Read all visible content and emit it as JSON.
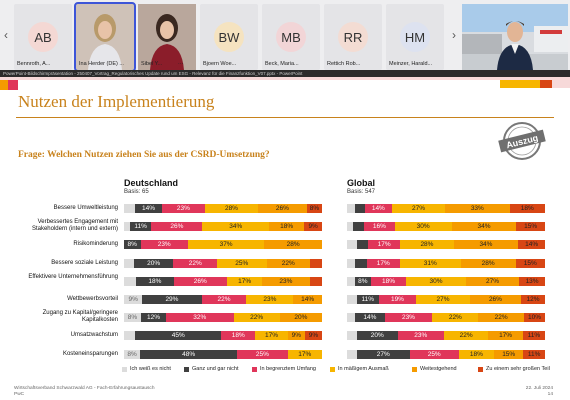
{
  "participants": [
    {
      "initials": "AB",
      "name": "Bennroth, A...",
      "color": "#f4d8d4"
    },
    {
      "initials": "",
      "name": "Ina Herder (DE) ...",
      "video": true,
      "active": true
    },
    {
      "initials": "",
      "name": "Sibel Y...",
      "video": true
    },
    {
      "initials": "BW",
      "name": "Bjoern Woe...",
      "color": "#f5e3c0"
    },
    {
      "initials": "MB",
      "name": "Beck, Maria...",
      "color": "#f2d5d7"
    },
    {
      "initials": "RR",
      "name": "Rettich Rob...",
      "color": "#f3dcd3"
    },
    {
      "initials": "HM",
      "name": "Meinzer, Harald...",
      "color": "#dde2f0"
    }
  ],
  "more_label": "⋯",
  "window_title": "PowerPoint-Bildschirmpräsentation - 250407_Vortrag_Regulatorisches Update rund um ESG - Relevanz für die Finanzfunktion_V07.pptx - PowerPoint",
  "slide": {
    "title": "Nutzen der Implementierung",
    "stamp": "Auszug",
    "question": "Frage: Welchen Nutzen ziehen Sie aus der CSRD-Umsetzung?",
    "germany": {
      "heading": "Deutschland",
      "basis": "Basis: 65"
    },
    "global": {
      "heading": "Global",
      "basis": "Basis: 547"
    },
    "footer_left": "Wirtschaftsverband Schwarzwald AG - Fach-Erfahrungsaustausch",
    "footer_left2": "PwC",
    "footer_date": "22. Juli 2024",
    "footer_page": "14"
  },
  "colors": {
    "unknown": "#dcdcdc",
    "none": "#404040",
    "limited": "#e0365a",
    "moderate": "#f7b500",
    "extensive": "#f59b00",
    "large": "#d84614",
    "accent": "#c8821c"
  },
  "legend": [
    {
      "key": "unknown",
      "label": "Ich weiß es nicht"
    },
    {
      "key": "none",
      "label": "Ganz und gar nicht"
    },
    {
      "key": "limited",
      "label": "In begrenztem Umfang"
    },
    {
      "key": "moderate",
      "label": "In mäßigem Ausmaß"
    },
    {
      "key": "extensive",
      "label": "Weitestgehend"
    },
    {
      "key": "large",
      "label": "Zu einem sehr großen Teil"
    }
  ],
  "chart_data": [
    {
      "type": "bar",
      "title": "Deutschland",
      "subtitle": "Basis: 65",
      "stacked": true,
      "categories": [
        "Bessere Umweltleistung",
        "Verbessertes Engagement mit Stakeholdern (intern und extern)",
        "Risikominderung",
        "Bessere soziale Leistung",
        "Effektivere Unternehmensführung",
        "Wettbewerbsvorteil",
        "Zugang zu Kapital/geringere Kapitalkosten",
        "Umsatzwachstum",
        "Kosteneinsparungen"
      ],
      "series": [
        {
          "name": "Ich weiß es nicht",
          "values": [
            6,
            3,
            0,
            5,
            6,
            9,
            8,
            6,
            8
          ]
        },
        {
          "name": "Ganz und gar nicht",
          "values": [
            14,
            11,
            8,
            20,
            18,
            29,
            12,
            45,
            48
          ]
        },
        {
          "name": "In begrenztem Umfang",
          "values": [
            23,
            26,
            23,
            22,
            26,
            22,
            32,
            18,
            25
          ]
        },
        {
          "name": "In mäßigem Ausmaß",
          "values": [
            28,
            34,
            37,
            25,
            17,
            23,
            22,
            17,
            17
          ]
        },
        {
          "name": "Weitestgehend",
          "values": [
            26,
            18,
            28,
            22,
            23,
            14,
            20,
            9,
            0
          ]
        },
        {
          "name": "Zu einem sehr großen Teil",
          "values": [
            8,
            9,
            0,
            6,
            6,
            0,
            0,
            9,
            0
          ]
        }
      ]
    },
    {
      "type": "bar",
      "title": "Global",
      "subtitle": "Basis: 547",
      "stacked": true,
      "categories": [
        "Bessere Umweltleistung",
        "Verbessertes Engagement mit Stakeholdern (intern und extern)",
        "Risikominderung",
        "Bessere soziale Leistung",
        "Effektivere Unternehmensführung",
        "Wettbewerbsvorteil",
        "Zugang zu Kapital/geringere Kapitalkosten",
        "Umsatzwachstum",
        "Kosteneinsparungen"
      ],
      "series": [
        {
          "name": "Ich weiß es nicht",
          "values": [
            4,
            3,
            5,
            4,
            4,
            5,
            4,
            5,
            5
          ]
        },
        {
          "name": "Ganz und gar nicht",
          "values": [
            5,
            6,
            6,
            6,
            8,
            11,
            14,
            20,
            27
          ]
        },
        {
          "name": "In begrenztem Umfang",
          "values": [
            14,
            16,
            17,
            17,
            18,
            19,
            23,
            23,
            25
          ]
        },
        {
          "name": "In mäßigem Ausmaß",
          "values": [
            27,
            30,
            28,
            31,
            30,
            27,
            22,
            22,
            18
          ]
        },
        {
          "name": "Weitestgehend",
          "values": [
            33,
            34,
            34,
            28,
            27,
            26,
            22,
            17,
            15
          ]
        },
        {
          "name": "Zu einem sehr großen Teil",
          "values": [
            18,
            15,
            14,
            15,
            13,
            12,
            10,
            11,
            11
          ]
        }
      ]
    }
  ]
}
